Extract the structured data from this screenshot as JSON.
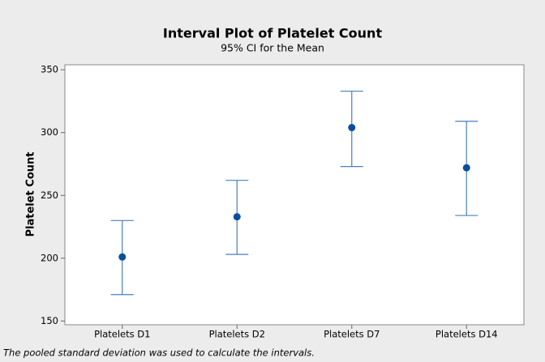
{
  "chart_data": {
    "type": "interval",
    "title": "Interval Plot of Platelet Count",
    "subtitle": "95% CI for the Mean",
    "y_label": "Platelet Count",
    "categories": [
      "Platelets D1",
      "Platelets D2",
      "Platelets D7",
      "Platelets D14"
    ],
    "values": [
      201,
      233,
      304,
      272
    ],
    "lower": [
      171,
      203,
      273,
      234
    ],
    "upper": [
      230,
      262,
      333,
      309
    ],
    "color": "#0b4f9c",
    "interval_color": "#4a7fc1",
    "ylim": [
      147,
      354
    ],
    "yticks": [
      150,
      200,
      250,
      300,
      350
    ],
    "footnote": "The pooled standard deviation was used to calculate the intervals."
  }
}
